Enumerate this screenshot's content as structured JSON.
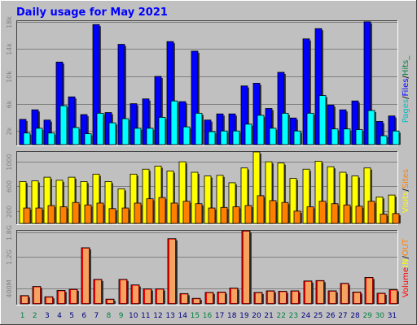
{
  "title": "Daily usage for May 2021",
  "colors": {
    "frame": "#c0c0c0",
    "plot_bg": "#c0c0c0",
    "grid": "#808080",
    "title": "#0000ff",
    "weekday": "#000080",
    "weekend": "#008040",
    "hits": "#0000ff",
    "files": "#00c0ff",
    "pages": "#00ffff",
    "visits": "#ffff00",
    "sites": "#ff8000",
    "kbytes": "#ff0000",
    "kbytes_light": "#f4a460"
  },
  "legend_top": [
    {
      "text": "Pages",
      "color": "#00c0c0"
    },
    {
      "text": "/",
      "color": "#000000"
    },
    {
      "text": "Files",
      "color": "#0000ff"
    },
    {
      "text": "/",
      "color": "#000000"
    },
    {
      "text": "Hits",
      "color": "#008040"
    },
    {
      "text": "_",
      "color": "#008040"
    }
  ],
  "legend_mid": [
    {
      "text": "Visits",
      "color": "#ffff00"
    },
    {
      "text": "/",
      "color": "#000000"
    },
    {
      "text": "Sites",
      "color": "#ff8000"
    }
  ],
  "legend_bot": [
    {
      "text": "Volume",
      "color": "#ff0000"
    },
    {
      "text": "IN",
      "color": "#ffff00"
    },
    {
      "text": "/",
      "color": "#000000"
    },
    {
      "text": "OUT",
      "color": "#ff8000"
    }
  ],
  "chart_data": [
    {
      "type": "bar",
      "panel": "hits-files-pages",
      "categories": [
        "1",
        "2",
        "3",
        "4",
        "5",
        "6",
        "7",
        "8",
        "9",
        "10",
        "11",
        "12",
        "13",
        "14",
        "15",
        "16",
        "17",
        "18",
        "19",
        "20",
        "21",
        "22",
        "23",
        "24",
        "25",
        "26",
        "27",
        "28",
        "29",
        "30",
        "31"
      ],
      "weekend_days": [
        "1",
        "2",
        "8",
        "9",
        "15",
        "16",
        "22",
        "23",
        "29",
        "30"
      ],
      "ytick_labels": [
        "2k",
        "6k",
        "10k",
        "14k",
        "18k"
      ],
      "ylim": [
        0,
        18100
      ],
      "series": [
        {
          "name": "Hits",
          "values": [
            3700,
            5100,
            3600,
            12100,
            7000,
            4400,
            17600,
            4700,
            14700,
            6000,
            6700,
            10000,
            15100,
            6300,
            13700,
            3600,
            4500,
            4500,
            8600,
            9000,
            5300,
            10600,
            3900,
            15500,
            17000,
            5800,
            5100,
            6400,
            18000,
            3400,
            4200
          ]
        },
        {
          "name": "Files",
          "values": [
            1700,
            2400,
            1700,
            5700,
            2500,
            1600,
            4600,
            3200,
            3800,
            2400,
            2400,
            4000,
            6400,
            2600,
            4600,
            1900,
            2000,
            2000,
            3000,
            4300,
            2400,
            4600,
            2000,
            4600,
            7200,
            2300,
            2300,
            2200,
            5000,
            1300,
            2000
          ]
        }
      ]
    },
    {
      "type": "bar",
      "panel": "visits-sites",
      "categories": [
        "1",
        "2",
        "3",
        "4",
        "5",
        "6",
        "7",
        "8",
        "9",
        "10",
        "11",
        "12",
        "13",
        "14",
        "15",
        "16",
        "17",
        "18",
        "19",
        "20",
        "21",
        "22",
        "23",
        "24",
        "25",
        "26",
        "27",
        "28",
        "29",
        "30",
        "31"
      ],
      "ytick_labels": [
        "200",
        "600",
        "1000"
      ],
      "ylim": [
        0,
        1160
      ],
      "series": [
        {
          "name": "Visits",
          "values": [
            680,
            690,
            750,
            700,
            750,
            680,
            800,
            680,
            560,
            800,
            880,
            930,
            850,
            1000,
            830,
            770,
            780,
            660,
            900,
            1160,
            1000,
            980,
            730,
            880,
            1010,
            920,
            830,
            770,
            900,
            430,
            460
          ]
        },
        {
          "name": "Sites",
          "values": [
            250,
            250,
            290,
            270,
            340,
            300,
            330,
            240,
            250,
            330,
            400,
            420,
            330,
            360,
            320,
            250,
            260,
            270,
            290,
            450,
            370,
            340,
            200,
            270,
            360,
            320,
            300,
            280,
            360,
            150,
            160
          ]
        }
      ]
    },
    {
      "type": "bar",
      "panel": "volume",
      "categories": [
        "1",
        "2",
        "3",
        "4",
        "5",
        "6",
        "7",
        "8",
        "9",
        "10",
        "11",
        "12",
        "13",
        "14",
        "15",
        "16",
        "17",
        "18",
        "19",
        "20",
        "21",
        "22",
        "23",
        "24",
        "25",
        "26",
        "27",
        "28",
        "29",
        "30",
        "31"
      ],
      "ytick_labels": [
        "400M",
        "1.2G",
        "1.8G"
      ],
      "ylim": [
        0,
        1850
      ],
      "series": [
        {
          "name": "Volume",
          "values": [
            210,
            440,
            180,
            340,
            370,
            1420,
            620,
            120,
            620,
            480,
            380,
            380,
            1650,
            260,
            140,
            290,
            300,
            400,
            1850,
            290,
            330,
            320,
            330,
            580,
            590,
            330,
            520,
            300,
            670,
            270,
            360
          ]
        }
      ]
    }
  ]
}
